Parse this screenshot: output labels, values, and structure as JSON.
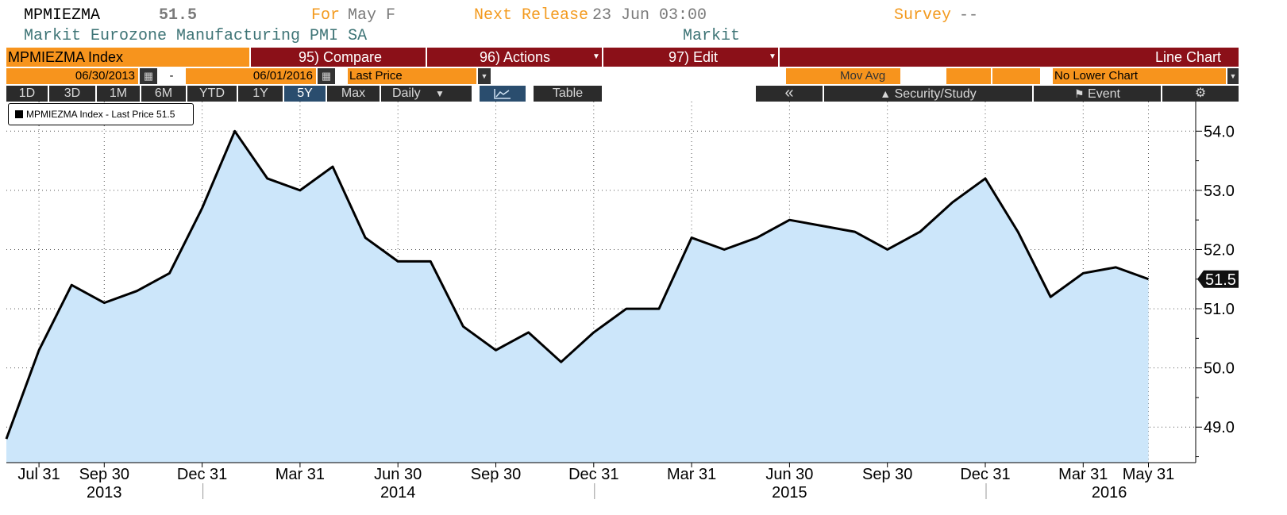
{
  "header": {
    "ticker": "MPMIEZMA",
    "value": "51.5",
    "for_label": "For",
    "for_value": "May F",
    "next_release_label": "Next Release",
    "next_release_value": "23 Jun 03:00",
    "survey_label": "Survey",
    "survey_value": "--",
    "description": "Markit Eurozone Manufacturing PMI SA",
    "source": "Markit"
  },
  "toolbar": {
    "security_field": "MPMIEZMA Index",
    "compare_label": "95) Compare",
    "actions_label": "96) Actions",
    "edit_label": "97) Edit",
    "chart_type_label": "Line Chart"
  },
  "range_bar": {
    "start_date": "06/30/2013",
    "dash": "-",
    "end_date": "06/01/2016",
    "field": "Last Price",
    "mov_avg_label": "Mov Avg",
    "lower_chart": "No Lower Chart"
  },
  "period_bar": {
    "periods": [
      "1D",
      "3D",
      "1M",
      "6M",
      "YTD",
      "1Y",
      "5Y",
      "Max"
    ],
    "active_period": "5Y",
    "frequency": "Daily",
    "table_label": "Table",
    "collapse_label": "«",
    "security_study_label": "Security/Study",
    "event_label": "Event"
  },
  "colors": {
    "orange": "#f7941d",
    "dark_red": "#8b1018",
    "area_fill": "#cce6fa",
    "line": "#000000",
    "active_tab": "#2a4d6e"
  },
  "chart_data": {
    "type": "area",
    "legend": "MPMIEZMA Index - Last Price 51.5",
    "last_value_label": "51.5",
    "x": [
      "2013-06-30",
      "2013-07-31",
      "2013-08-31",
      "2013-09-30",
      "2013-10-31",
      "2013-11-30",
      "2013-12-31",
      "2014-01-31",
      "2014-02-28",
      "2014-03-31",
      "2014-04-30",
      "2014-05-31",
      "2014-06-30",
      "2014-07-31",
      "2014-08-31",
      "2014-09-30",
      "2014-10-31",
      "2014-11-30",
      "2014-12-31",
      "2015-01-31",
      "2015-02-28",
      "2015-03-31",
      "2015-04-30",
      "2015-05-31",
      "2015-06-30",
      "2015-07-31",
      "2015-08-31",
      "2015-09-30",
      "2015-10-31",
      "2015-11-30",
      "2015-12-31",
      "2016-01-31",
      "2016-02-29",
      "2016-03-31",
      "2016-04-30",
      "2016-05-31"
    ],
    "values": [
      48.8,
      50.3,
      51.4,
      51.1,
      51.3,
      51.6,
      52.7,
      54.0,
      53.2,
      53.0,
      53.4,
      52.2,
      51.8,
      51.8,
      50.7,
      50.3,
      50.6,
      50.1,
      50.6,
      51.0,
      51.0,
      52.2,
      52.0,
      52.2,
      52.5,
      52.4,
      52.3,
      52.0,
      52.3,
      52.8,
      53.2,
      52.3,
      51.2,
      51.6,
      51.7,
      51.5
    ],
    "ylim": [
      48.4,
      54.5
    ],
    "y_ticks": [
      "49.0",
      "50.0",
      "51.0",
      "52.0",
      "53.0",
      "54.0"
    ],
    "x_tick_labels": [
      "Jul 31",
      "Sep 30",
      "Dec 31",
      "Mar 31",
      "Jun 30",
      "Sep 30",
      "Dec 31",
      "Mar 31",
      "Jun 30",
      "Sep 30",
      "Dec 31",
      "Mar 31",
      "May 31"
    ],
    "years": [
      "2013",
      "2014",
      "2015",
      "2016"
    ],
    "grid": true
  }
}
